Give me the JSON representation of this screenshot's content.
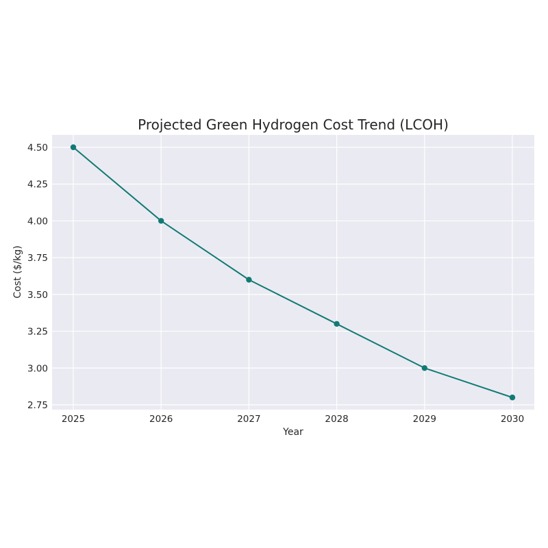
{
  "chart_data": {
    "type": "line",
    "title": "Projected Green Hydrogen Cost Trend (LCOH)",
    "xlabel": "Year",
    "ylabel": "Cost ($/kg)",
    "x": [
      "2025",
      "2026",
      "2027",
      "2028",
      "2029",
      "2030"
    ],
    "series": [
      {
        "values": [
          4.5,
          4.0,
          3.6,
          3.3,
          3.0,
          2.8
        ],
        "color": "#117a73",
        "marker": "circle"
      }
    ],
    "ylim": [
      2.75,
      4.5
    ],
    "yticks": [
      "2.75",
      "3.00",
      "3.25",
      "3.50",
      "3.75",
      "4.00",
      "4.25",
      "4.50"
    ],
    "grid": true,
    "background": "#eaeaf2"
  }
}
